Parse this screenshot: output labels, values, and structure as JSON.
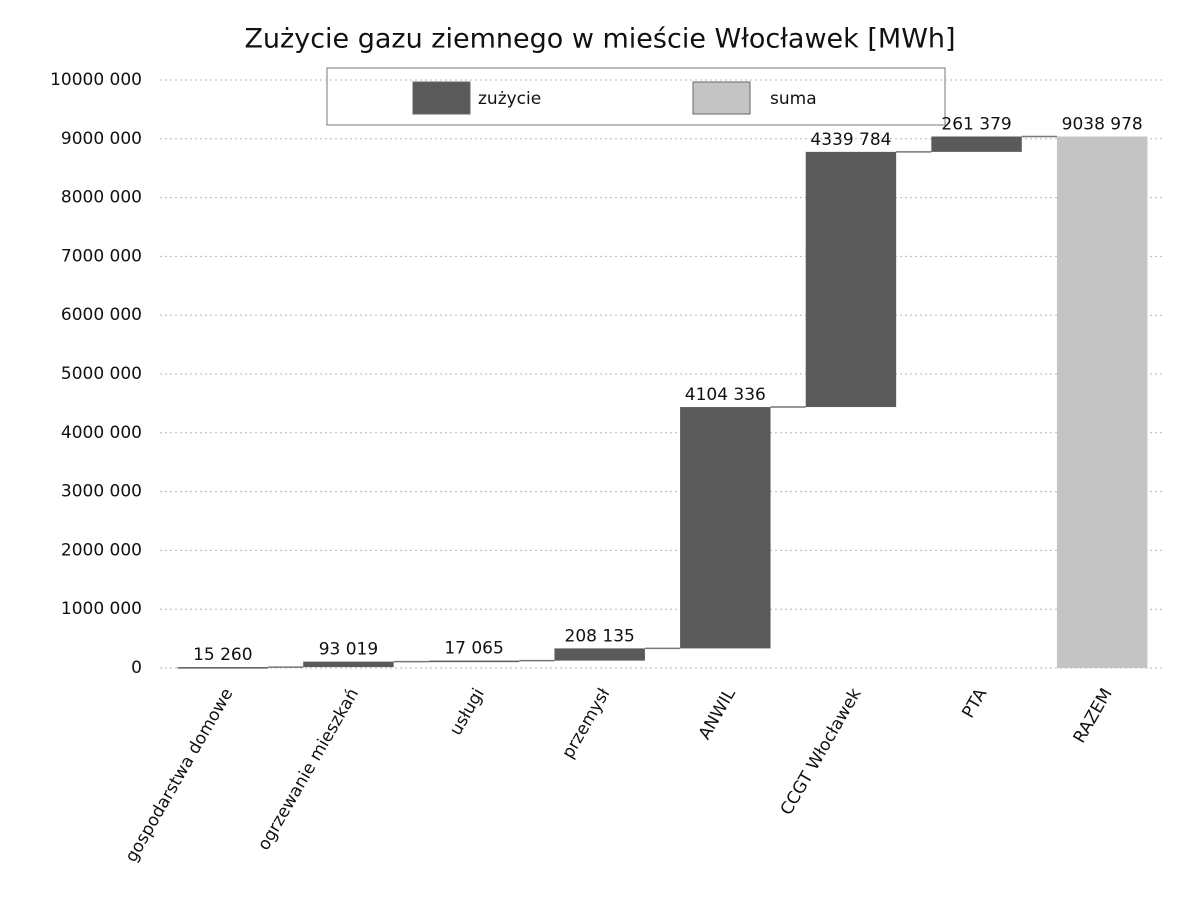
{
  "chart_data": {
    "type": "waterfall",
    "title": "Zużycie gazu ziemnego w mieście Włocławek [MWh]",
    "categories": [
      "gospodarstwa domowe",
      "ogrzewanie mieszkań",
      "usługi",
      "przemysł",
      "ANWIL",
      "CCGT Włocławek",
      "PTA",
      "RAZEM"
    ],
    "series": [
      {
        "name": "zużycie",
        "color": "#5a5a5a",
        "values": [
          15260,
          93019,
          17065,
          208135,
          4104336,
          4339784,
          261379,
          null
        ],
        "value_labels": [
          "15 260",
          "93 019",
          "17 065",
          "208 135",
          "4104 336",
          "4339 784",
          "261 379",
          null
        ]
      },
      {
        "name": "suma",
        "color": "#c4c4c4",
        "total": true,
        "values": [
          null,
          null,
          null,
          null,
          null,
          null,
          null,
          9038978
        ],
        "value_labels": [
          null,
          null,
          null,
          null,
          null,
          null,
          null,
          "9038 978"
        ]
      }
    ],
    "ylim": [
      0,
      10000000
    ],
    "yticks": [
      {
        "value": 0,
        "label": "0"
      },
      {
        "value": 1000000,
        "label": "1000 000"
      },
      {
        "value": 2000000,
        "label": "2000 000"
      },
      {
        "value": 3000000,
        "label": "3000 000"
      },
      {
        "value": 4000000,
        "label": "4000 000"
      },
      {
        "value": 5000000,
        "label": "5000 000"
      },
      {
        "value": 6000000,
        "label": "6000 000"
      },
      {
        "value": 7000000,
        "label": "7000 000"
      },
      {
        "value": 8000000,
        "label": "8000 000"
      },
      {
        "value": 9000000,
        "label": "9000 000"
      },
      {
        "value": 10000000,
        "label": "10000 000"
      }
    ],
    "grid": true,
    "legend": "top"
  }
}
